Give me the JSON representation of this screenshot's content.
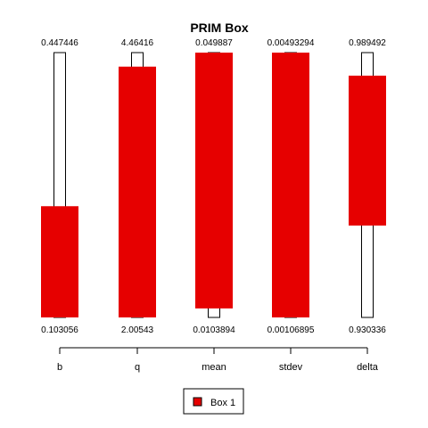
{
  "chart_data": {
    "type": "bar",
    "title": "PRIM Box",
    "categories": [
      "b",
      "q",
      "mean",
      "stdev",
      "delta"
    ],
    "ranges": [
      {
        "name": "b",
        "upper_label": "0.447446",
        "lower_label": "0.103056",
        "box_lower": 0.0,
        "box_upper": 0.42
      },
      {
        "name": "q",
        "upper_label": "4.46416",
        "lower_label": "2.00543",
        "box_lower": 0.0,
        "box_upper": 0.947
      },
      {
        "name": "mean",
        "upper_label": "0.049887",
        "lower_label": "0.0103894",
        "box_lower": 0.0,
        "box_upper": 1.0
      },
      {
        "name": "stdev",
        "upper_label": "0.00493294",
        "lower_label": "0.00106895",
        "box_lower": 0.0,
        "box_upper": 1.0
      },
      {
        "name": "delta",
        "upper_label": "0.989492",
        "lower_label": "0.930336",
        "box_lower": 0.347,
        "box_upper": 0.913
      }
    ],
    "mean_box_lower": 0.034,
    "series": [
      {
        "name": "Box 1",
        "color": "#e60000"
      }
    ],
    "legend": {
      "label": "Box 1",
      "placement": "bottom-center"
    }
  }
}
